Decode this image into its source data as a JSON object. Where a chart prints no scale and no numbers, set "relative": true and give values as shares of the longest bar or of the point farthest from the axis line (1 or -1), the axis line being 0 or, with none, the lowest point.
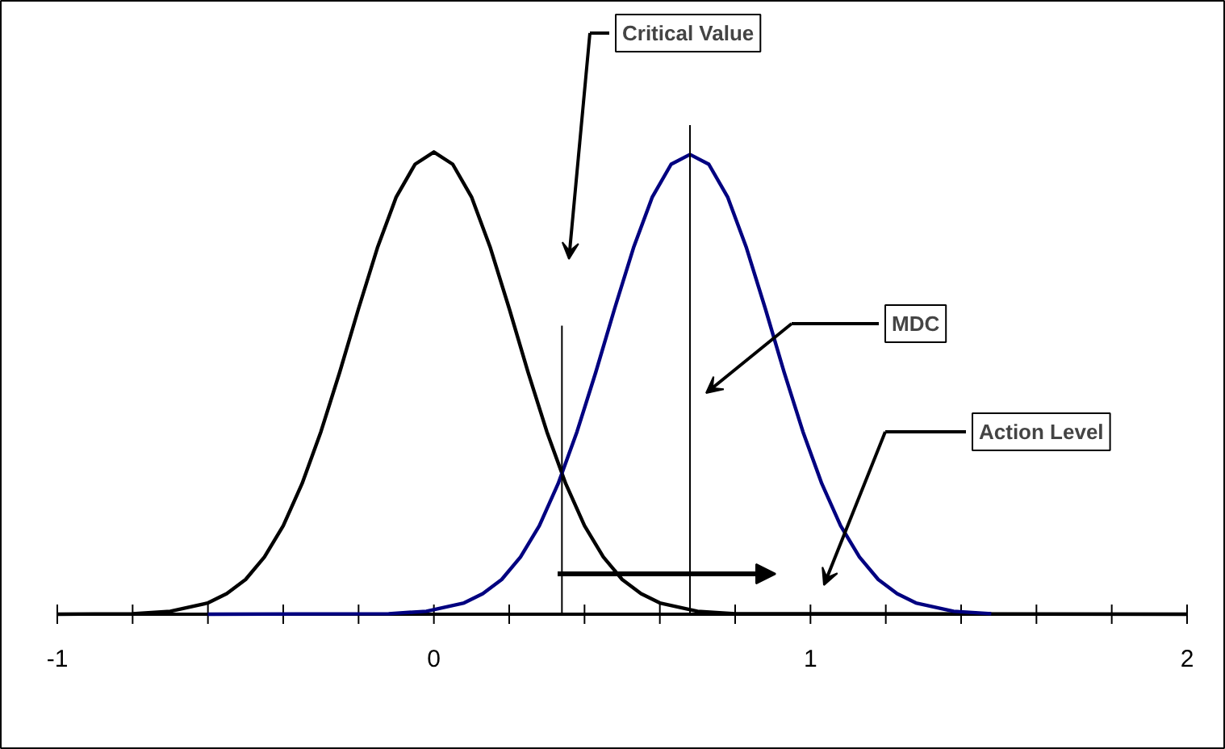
{
  "chart_data": {
    "type": "line",
    "relative": true,
    "xlim": [
      -1,
      2
    ],
    "xticks": [
      -1,
      {
        "value": -0.8,
        "label": null
      },
      {
        "value": -0.6,
        "label": null
      },
      {
        "value": -0.4,
        "label": null
      },
      {
        "value": -0.2,
        "label": null
      },
      0,
      {
        "value": 0.2,
        "label": null
      },
      {
        "value": 0.4,
        "label": null
      },
      {
        "value": 0.6,
        "label": null
      },
      {
        "value": 0.8,
        "label": null
      },
      1,
      {
        "value": 1.2,
        "label": null
      },
      {
        "value": 1.4,
        "label": null
      },
      {
        "value": 1.6,
        "label": null
      },
      {
        "value": 1.8,
        "label": null
      },
      2
    ],
    "tick_labels": "x",
    "series": [
      {
        "color": "#000000",
        "x": [
          -1,
          -0.8,
          -0.7,
          -0.6,
          -0.55,
          -0.5,
          -0.45,
          -0.4,
          -0.35,
          -0.3,
          -0.25,
          -0.2,
          -0.15,
          -0.1,
          -0.05,
          0,
          0.05,
          0.1,
          0.15,
          0.2,
          0.25,
          0.3,
          0.35,
          0.4,
          0.45,
          0.5,
          0.55,
          0.6,
          0.7,
          0.8,
          2
        ],
        "values": [
          0,
          0.001,
          0.006,
          0.023,
          0.042,
          0.071,
          0.117,
          0.181,
          0.267,
          0.373,
          0.495,
          0.625,
          0.749,
          0.853,
          0.92,
          0.945,
          0.92,
          0.853,
          0.749,
          0.625,
          0.495,
          0.373,
          0.267,
          0.181,
          0.117,
          0.071,
          0.042,
          0.023,
          0.006,
          0.001,
          0
        ]
      },
      {
        "color": "#000080",
        "x": [
          -0.6,
          -0.12,
          -0.02,
          0.08,
          0.13,
          0.18,
          0.23,
          0.28,
          0.33,
          0.38,
          0.43,
          0.48,
          0.53,
          0.58,
          0.63,
          0.68,
          0.73,
          0.78,
          0.83,
          0.88,
          0.93,
          0.98,
          1.03,
          1.08,
          1.13,
          1.18,
          1.23,
          1.28,
          1.38,
          1.48
        ],
        "values": [
          0,
          0.001,
          0.006,
          0.023,
          0.042,
          0.071,
          0.117,
          0.181,
          0.267,
          0.373,
          0.495,
          0.625,
          0.749,
          0.853,
          0.92,
          0.94,
          0.92,
          0.853,
          0.749,
          0.625,
          0.495,
          0.373,
          0.267,
          0.181,
          0.117,
          0.071,
          0.042,
          0.023,
          0.006,
          0.001
        ]
      },
      {
        "color": "#000000",
        "x": [
          0.34,
          0.34
        ],
        "values": [
          0,
          0.59
        ]
      },
      {
        "color": "#000000",
        "x": [
          0.68,
          0.68
        ],
        "values": [
          0,
          1
        ]
      }
    ],
    "annotations": [
      "Critical Value",
      "MDC",
      "Action Level"
    ]
  }
}
